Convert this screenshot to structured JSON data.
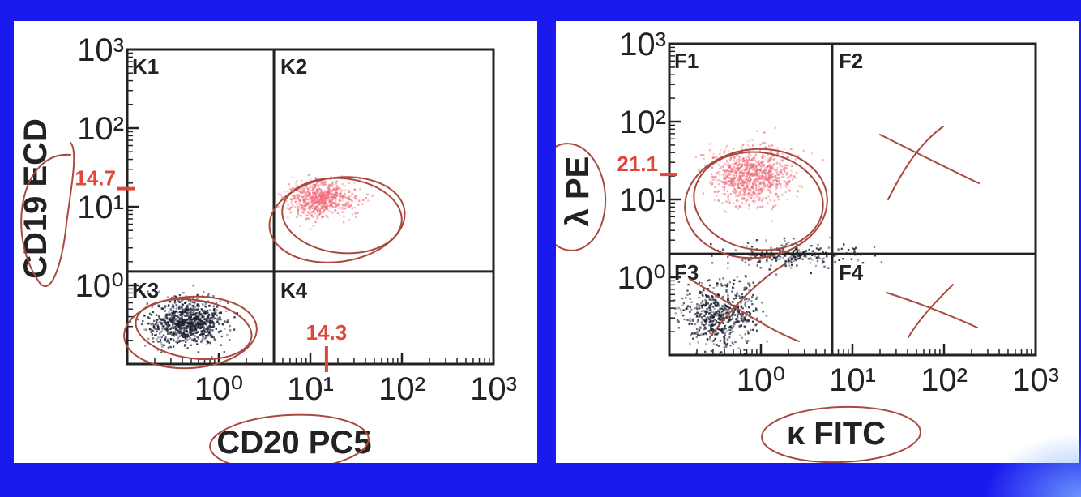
{
  "colors": {
    "background": "#1a1aee",
    "panel": "#ffffff",
    "axis": "#222222",
    "gate_marker": "#e0473a",
    "annotation": "#a84a3e",
    "pop_pink": "#f06a78",
    "pop_dark": "#1c2033"
  },
  "chart_data": [
    {
      "type": "scatter",
      "scale": "log",
      "xlabel": "CD20 PC5",
      "ylabel": "CD19 ECD",
      "xlim": [
        0.1,
        1000
      ],
      "ylim": [
        0.1,
        1000
      ],
      "x_ticks": [
        {
          "value": 1,
          "label": "10⁰"
        },
        {
          "value": 10,
          "label": "10¹"
        },
        {
          "value": 100,
          "label": "10²"
        },
        {
          "value": 1000,
          "label": "10³"
        }
      ],
      "y_ticks": [
        {
          "value": 1,
          "label": "10⁰"
        },
        {
          "value": 10,
          "label": "10¹"
        },
        {
          "value": 100,
          "label": "10²"
        },
        {
          "value": 1000,
          "label": "10³"
        }
      ],
      "gate_x": 4,
      "gate_y": 1.5,
      "quadrants": [
        "K1",
        "K2",
        "K3",
        "K4"
      ],
      "markers": [
        {
          "axis": "y",
          "value": 17,
          "label": "14.7"
        },
        {
          "axis": "x",
          "value": 15,
          "label": "14.3"
        }
      ],
      "populations": [
        {
          "color": "pink",
          "center_x": 13,
          "center_y": 13,
          "spread_x": 0.18,
          "spread_y": 0.12,
          "count": 700
        },
        {
          "color": "dark",
          "center_x": 0.45,
          "center_y": 0.35,
          "spread_x": 0.2,
          "spread_y": 0.14,
          "count": 900
        }
      ]
    },
    {
      "type": "scatter",
      "scale": "log",
      "xlabel": "κ FITC",
      "ylabel": "λ PE",
      "xlim": [
        0.1,
        1000
      ],
      "ylim": [
        0.1,
        1000
      ],
      "x_ticks": [
        {
          "value": 1,
          "label": "10⁰"
        },
        {
          "value": 10,
          "label": "10¹"
        },
        {
          "value": 100,
          "label": "10²"
        },
        {
          "value": 1000,
          "label": "10³"
        }
      ],
      "y_ticks": [
        {
          "value": 1,
          "label": "10⁰"
        },
        {
          "value": 10,
          "label": "10¹"
        },
        {
          "value": 100,
          "label": "10²"
        },
        {
          "value": 1000,
          "label": "10³"
        }
      ],
      "gate_x": 6,
      "gate_y": 2,
      "quadrants": [
        "F1",
        "F2",
        "F3",
        "F4"
      ],
      "markers": [
        {
          "axis": "y",
          "value": 21,
          "label": "21.1"
        }
      ],
      "populations": [
        {
          "color": "pink",
          "center_x": 0.8,
          "center_y": 21,
          "spread_x": 0.22,
          "spread_y": 0.18,
          "count": 900
        },
        {
          "color": "dark",
          "center_x": 0.35,
          "center_y": 0.35,
          "spread_x": 0.2,
          "spread_y": 0.2,
          "count": 600
        },
        {
          "color": "dark",
          "center_x": 2,
          "center_y": 2,
          "spread_x": 0.35,
          "spread_y": 0.08,
          "count": 250
        }
      ]
    }
  ]
}
